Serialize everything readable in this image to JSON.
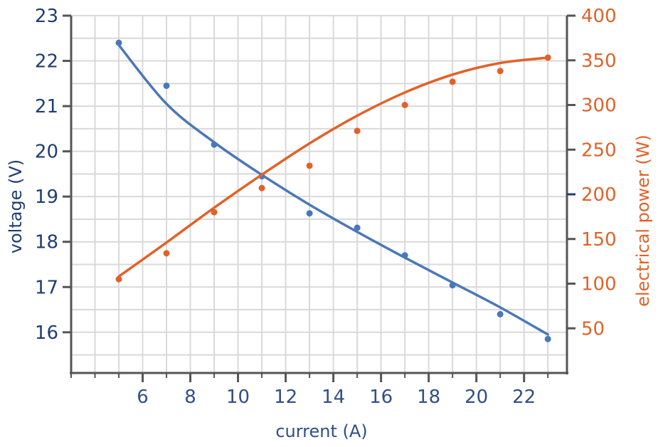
{
  "chart_data": {
    "type": "scatter",
    "xlabel": "current (A)",
    "ylabel": "voltage (V)",
    "y2label": "electrical power (W)",
    "xlim": [
      3,
      23.8
    ],
    "ylim": [
      15.1,
      23
    ],
    "y2lim": [
      0,
      400
    ],
    "xticks": [
      6,
      8,
      10,
      12,
      14,
      16,
      18,
      20,
      22
    ],
    "yticks": [
      16,
      17,
      18,
      19,
      20,
      21,
      22,
      23
    ],
    "y2ticks": [
      50,
      100,
      150,
      200,
      250,
      300,
      350,
      400
    ],
    "grid": true,
    "colors": {
      "voltage": "#4a78b8",
      "power": "#e0622a",
      "left_axis_text": "#1f3e73",
      "x_axis_text": "#2f4f87",
      "frame": "#555555",
      "grid": "#d9d9d9"
    },
    "series": [
      {
        "axis": "left",
        "color": "#4a78b8",
        "x": [
          5,
          7,
          9,
          11,
          13,
          15,
          17,
          19,
          21,
          23
        ],
        "y": [
          22.4,
          21.45,
          20.15,
          19.45,
          18.63,
          18.31,
          17.7,
          17.04,
          16.4,
          15.85
        ],
        "trend_y": [
          22.35,
          21.05,
          20.2,
          19.48,
          18.82,
          18.22,
          17.65,
          17.1,
          16.55,
          15.95
        ]
      },
      {
        "axis": "right",
        "color": "#e0622a",
        "x": [
          5,
          7,
          9,
          11,
          13,
          15,
          17,
          19,
          21,
          23
        ],
        "y": [
          105,
          134,
          180,
          207,
          232,
          271,
          300,
          326,
          338,
          353
        ],
        "trend_y": [
          108,
          146,
          185,
          222,
          257,
          288,
          314,
          334,
          347,
          353
        ]
      }
    ]
  }
}
